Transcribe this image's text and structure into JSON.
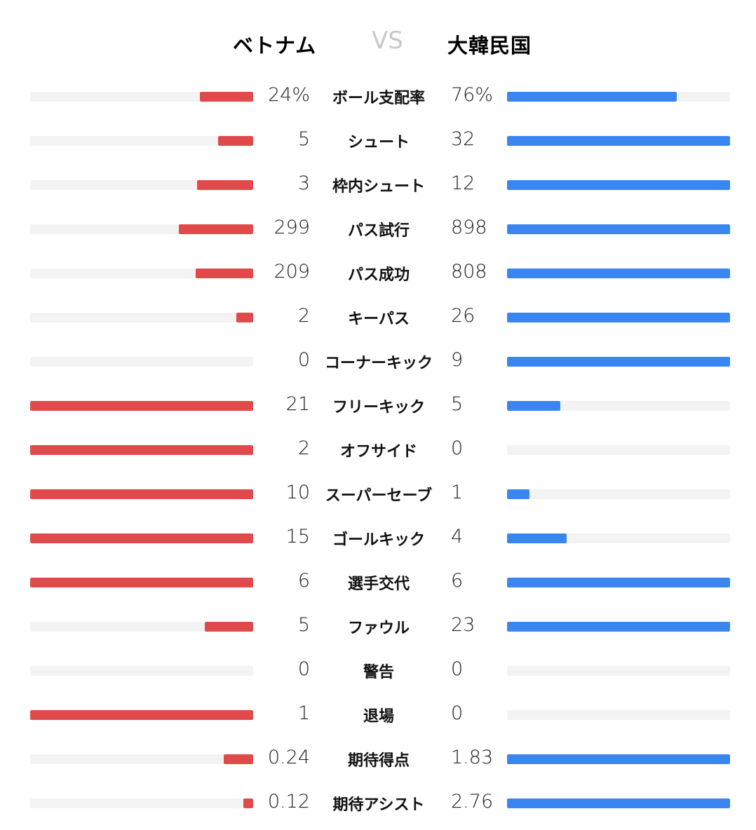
{
  "header": {
    "home_team": "ベトナム",
    "vs_label": "VS",
    "away_team": "大韓民国"
  },
  "colors": {
    "home": "#e04a4a",
    "away": "#3a86f0",
    "track": "#f3f3f3"
  },
  "chart_data": {
    "type": "bar",
    "title": "",
    "series": [
      {
        "name": "ベトナム",
        "color": "#e04a4a"
      },
      {
        "name": "大韓民国",
        "color": "#3a86f0"
      }
    ],
    "rows": [
      {
        "label": "ボール支配率",
        "home": "24%",
        "away": "76%",
        "home_val": 24,
        "away_val": 76,
        "max": 100
      },
      {
        "label": "シュート",
        "home": "5",
        "away": "32",
        "home_val": 5,
        "away_val": 32
      },
      {
        "label": "枠内シュート",
        "home": "3",
        "away": "12",
        "home_val": 3,
        "away_val": 12
      },
      {
        "label": "パス試行",
        "home": "299",
        "away": "898",
        "home_val": 299,
        "away_val": 898
      },
      {
        "label": "パス成功",
        "home": "209",
        "away": "808",
        "home_val": 209,
        "away_val": 808
      },
      {
        "label": "キーパス",
        "home": "2",
        "away": "26",
        "home_val": 2,
        "away_val": 26
      },
      {
        "label": "コーナーキック",
        "home": "0",
        "away": "9",
        "home_val": 0,
        "away_val": 9
      },
      {
        "label": "フリーキック",
        "home": "21",
        "away": "5",
        "home_val": 21,
        "away_val": 5
      },
      {
        "label": "オフサイド",
        "home": "2",
        "away": "0",
        "home_val": 2,
        "away_val": 0
      },
      {
        "label": "スーパーセーブ",
        "home": "10",
        "away": "1",
        "home_val": 10,
        "away_val": 1
      },
      {
        "label": "ゴールキック",
        "home": "15",
        "away": "4",
        "home_val": 15,
        "away_val": 4
      },
      {
        "label": "選手交代",
        "home": "6",
        "away": "6",
        "home_val": 6,
        "away_val": 6
      },
      {
        "label": "ファウル",
        "home": "5",
        "away": "23",
        "home_val": 5,
        "away_val": 23
      },
      {
        "label": "警告",
        "home": "0",
        "away": "0",
        "home_val": 0,
        "away_val": 0
      },
      {
        "label": "退場",
        "home": "1",
        "away": "0",
        "home_val": 1,
        "away_val": 0
      },
      {
        "label": "期待得点",
        "home": "0.24",
        "away": "1.83",
        "home_val": 0.24,
        "away_val": 1.83
      },
      {
        "label": "期待アシスト",
        "home": "0.12",
        "away": "2.76",
        "home_val": 0.12,
        "away_val": 2.76
      }
    ]
  }
}
